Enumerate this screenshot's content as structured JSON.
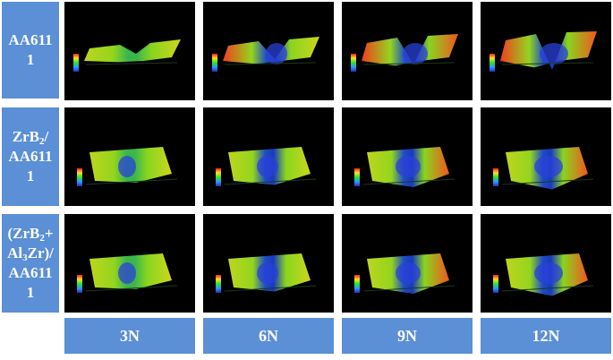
{
  "rows": [
    {
      "label_parts": [
        "AA611",
        "",
        "1"
      ]
    },
    {
      "label_parts": [
        "ZrB",
        "2",
        "/AA611 1"
      ]
    },
    {
      "label_parts": [
        "(ZrB",
        "2",
        "+ Al"
      ],
      "extra": [
        "3",
        "Zr)/AA611 1"
      ]
    }
  ],
  "columns": [
    "3N",
    "6N",
    "9N",
    "12N"
  ],
  "panels": [
    [
      "wear-profile-aa6111-3n",
      "wear-profile-aa6111-6n",
      "wear-profile-aa6111-9n",
      "wear-profile-aa6111-12n"
    ],
    [
      "wear-profile-zrb2-3n",
      "wear-profile-zrb2-6n",
      "wear-profile-zrb2-9n",
      "wear-profile-zrb2-12n"
    ],
    [
      "wear-profile-zrb2-al3zr-3n",
      "wear-profile-zrb2-al3zr-6n",
      "wear-profile-zrb2-al3zr-9n",
      "wear-profile-zrb2-al3zr-12n"
    ]
  ]
}
